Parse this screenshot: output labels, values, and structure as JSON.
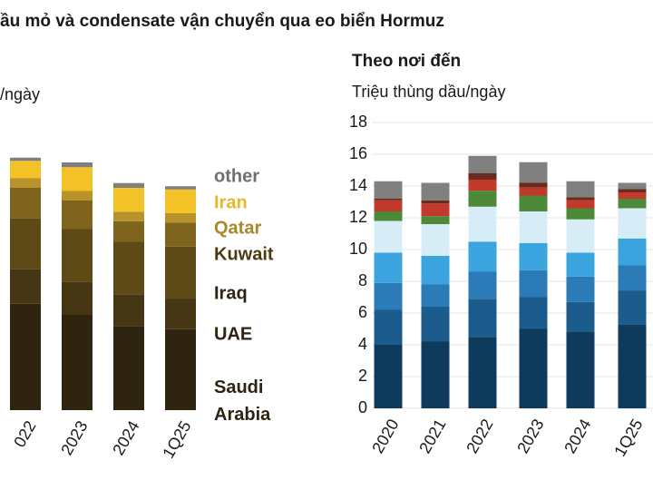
{
  "title": "ầu mỏ và condensate vận chuyển qua eo biển Hormuz",
  "chart_data": [
    {
      "type": "stacked-bar",
      "ylabel": "/ngày",
      "categories": [
        "022",
        "2023",
        "2024",
        "1Q25"
      ],
      "ylim": [
        0,
        18
      ],
      "series": [
        {
          "name": "Saudi Arabia",
          "color": "#2e2410",
          "values": [
            6.7,
            6.0,
            5.3,
            5.1
          ]
        },
        {
          "name": "UAE",
          "color": "#453614",
          "values": [
            2.2,
            2.1,
            2.0,
            1.9
          ]
        },
        {
          "name": "Iraq",
          "color": "#5e4a16",
          "values": [
            3.2,
            3.3,
            3.3,
            3.3
          ]
        },
        {
          "name": "Kuwait",
          "color": "#7e641c",
          "values": [
            1.9,
            1.8,
            1.3,
            1.5
          ]
        },
        {
          "name": "Qatar",
          "color": "#b8922a",
          "values": [
            0.6,
            0.6,
            0.6,
            0.6
          ]
        },
        {
          "name": "Iran",
          "color": "#f2c227",
          "values": [
            1.1,
            1.5,
            1.5,
            1.5
          ]
        },
        {
          "name": "other",
          "color": "#7f7f7f",
          "values": [
            0.2,
            0.3,
            0.3,
            0.2
          ]
        }
      ]
    },
    {
      "type": "stacked-bar",
      "title": "Theo nơi đến",
      "ylabel": "Triệu thùng dầu/ngày",
      "categories": [
        "2020",
        "2021",
        "2022",
        "2023",
        "2024",
        "1Q25"
      ],
      "ylim": [
        0,
        18
      ],
      "yticks": [
        0,
        2,
        4,
        6,
        8,
        10,
        12,
        14,
        16,
        18
      ],
      "grid": true,
      "series": [
        {
          "color": "#0e3a5c",
          "values": [
            4.0,
            4.2,
            4.5,
            5.0,
            4.8,
            5.3
          ]
        },
        {
          "color": "#1b5c8c",
          "values": [
            2.2,
            2.2,
            2.4,
            2.0,
            1.9,
            2.1
          ]
        },
        {
          "color": "#2a7bb8",
          "values": [
            1.7,
            1.4,
            1.7,
            1.7,
            1.6,
            1.6
          ]
        },
        {
          "color": "#3ba3de",
          "values": [
            1.9,
            1.8,
            1.9,
            1.7,
            1.5,
            1.7
          ]
        },
        {
          "color": "#d6edf8",
          "values": [
            2.0,
            2.0,
            2.2,
            2.0,
            2.1,
            1.9
          ]
        },
        {
          "color": "#4c8a3a",
          "values": [
            0.6,
            0.5,
            1.0,
            1.0,
            0.7,
            0.6
          ]
        },
        {
          "color": "#c0392b",
          "values": [
            0.7,
            0.8,
            0.7,
            0.5,
            0.5,
            0.4
          ]
        },
        {
          "color": "#6b2a1e",
          "values": [
            0.1,
            0.2,
            0.4,
            0.3,
            0.2,
            0.2
          ]
        },
        {
          "color": "#808080",
          "values": [
            1.1,
            1.1,
            1.1,
            1.3,
            1.0,
            0.4
          ]
        }
      ]
    }
  ]
}
